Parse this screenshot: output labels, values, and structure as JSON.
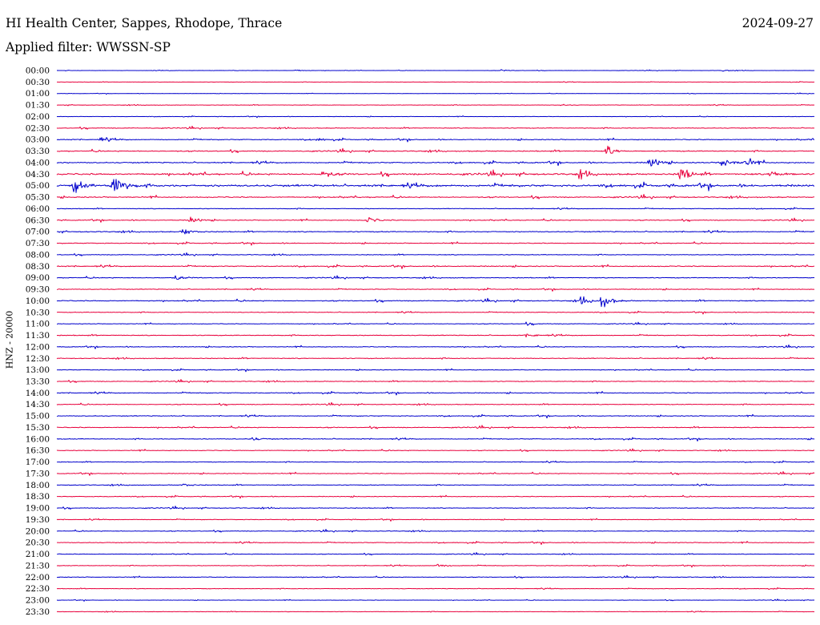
{
  "header": {
    "station": "HI Health Center, Sappes, Rhodope, Thrace",
    "date": "2024-09-27",
    "filter": "Applied filter: WWSSN-SP"
  },
  "colors": {
    "trace_a": "#0000cc",
    "trace_b": "#e8003c",
    "text": "#000000",
    "background": "#ffffff"
  },
  "chart_data": {
    "type": "line",
    "title": "HI Health Center, Sappes, Rhodope, Thrace",
    "subtitle": "Applied filter: WWSSN-SP",
    "ylabel": "HNZ - 20000",
    "xlabel": "",
    "rows": [
      "00:00",
      "00:30",
      "01:00",
      "01:30",
      "02:00",
      "02:30",
      "03:00",
      "03:30",
      "04:00",
      "04:30",
      "05:00",
      "05:30",
      "06:00",
      "06:30",
      "07:00",
      "07:30",
      "08:00",
      "08:30",
      "09:00",
      "09:30",
      "10:00",
      "10:30",
      "11:00",
      "11:30",
      "12:00",
      "12:30",
      "13:00",
      "13:30",
      "14:00",
      "14:30",
      "15:00",
      "15:30",
      "16:00",
      "16:30",
      "17:00",
      "17:30",
      "18:00",
      "18:30",
      "19:00",
      "19:30",
      "20:00",
      "20:30",
      "21:00",
      "21:30",
      "22:00",
      "22:30",
      "23:00",
      "23:30"
    ],
    "row_minutes": 30,
    "noise_level": [
      0.2,
      0.25,
      0.2,
      0.35,
      0.3,
      0.55,
      0.65,
      0.75,
      0.85,
      1.2,
      1.5,
      0.8,
      0.5,
      0.6,
      0.7,
      0.6,
      0.55,
      0.7,
      0.6,
      0.55,
      0.7,
      0.5,
      0.45,
      0.6,
      0.55,
      0.6,
      0.5,
      0.55,
      0.6,
      0.55,
      0.6,
      0.6,
      0.6,
      0.5,
      0.5,
      0.55,
      0.55,
      0.5,
      0.55,
      0.45,
      0.5,
      0.55,
      0.45,
      0.45,
      0.45,
      0.4,
      0.3,
      0.35
    ],
    "events": [
      {
        "row": 0,
        "minute": 9.5,
        "amplitude": 1.5
      },
      {
        "row": 0,
        "minute": 17.6,
        "amplitude": 1.5
      },
      {
        "row": 0,
        "minute": 26.4,
        "amplitude": 1.5
      },
      {
        "row": 3,
        "minute": 19.9,
        "amplitude": 2
      },
      {
        "row": 6,
        "minute": 1.7,
        "amplitude": 4
      },
      {
        "row": 6,
        "minute": 10.3,
        "amplitude": 3
      },
      {
        "row": 7,
        "minute": 21.8,
        "amplitude": 9
      },
      {
        "row": 8,
        "minute": 23.5,
        "amplitude": 11
      },
      {
        "row": 8,
        "minute": 26.3,
        "amplitude": 13
      },
      {
        "row": 8,
        "minute": 27.3,
        "amplitude": 9
      },
      {
        "row": 9,
        "minute": 10.5,
        "amplitude": 7
      },
      {
        "row": 9,
        "minute": 20.7,
        "amplitude": 8
      },
      {
        "row": 9,
        "minute": 24.7,
        "amplitude": 15
      },
      {
        "row": 9,
        "minute": 28.3,
        "amplitude": 9
      },
      {
        "row": 10,
        "minute": 0.7,
        "amplitude": 13
      },
      {
        "row": 10,
        "minute": 2.2,
        "amplitude": 10
      },
      {
        "row": 10,
        "minute": 2.3,
        "amplitude": 15
      },
      {
        "row": 13,
        "minute": 5.3,
        "amplitude": 6
      },
      {
        "row": 13,
        "minute": 12.3,
        "amplitude": 7
      },
      {
        "row": 14,
        "minute": 5.0,
        "amplitude": 7
      },
      {
        "row": 18,
        "minute": 4.7,
        "amplitude": 4
      },
      {
        "row": 20,
        "minute": 20.8,
        "amplitude": 10
      },
      {
        "row": 20,
        "minute": 21.6,
        "amplitude": 13
      },
      {
        "row": 22,
        "minute": 18.6,
        "amplitude": 2
      },
      {
        "row": 23,
        "minute": 18.6,
        "amplitude": 4
      },
      {
        "row": 32,
        "minute": 7.7,
        "amplitude": 4
      },
      {
        "row": 36,
        "minute": 5.0,
        "amplitude": 3
      },
      {
        "row": 43,
        "minute": 15.1,
        "amplitude": 4
      }
    ]
  }
}
